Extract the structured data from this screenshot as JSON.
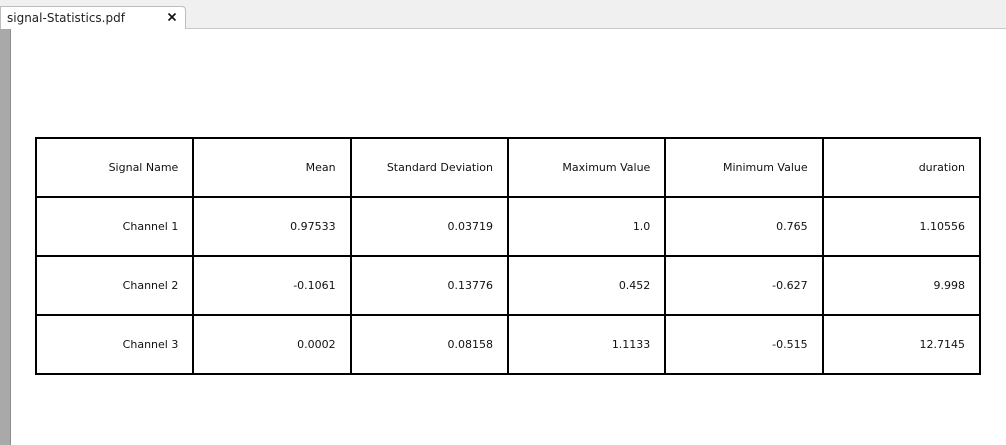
{
  "tab": {
    "title": "signal-Statistics.pdf",
    "close_glyph": "✕"
  },
  "table": {
    "headers": [
      "Signal Name",
      "Mean",
      "Standard Deviation",
      "Maximum Value",
      "Minimum Value",
      "duration"
    ],
    "rows": [
      [
        "Channel 1",
        "0.97533",
        "0.03719",
        "1.0",
        "0.765",
        "1.10556"
      ],
      [
        "Channel 2",
        "-0.1061",
        "0.13776",
        "0.452",
        "-0.627",
        "9.998"
      ],
      [
        "Channel 3",
        "0.0002",
        "0.08158",
        "1.1133",
        "-0.515",
        "12.7145"
      ]
    ]
  }
}
